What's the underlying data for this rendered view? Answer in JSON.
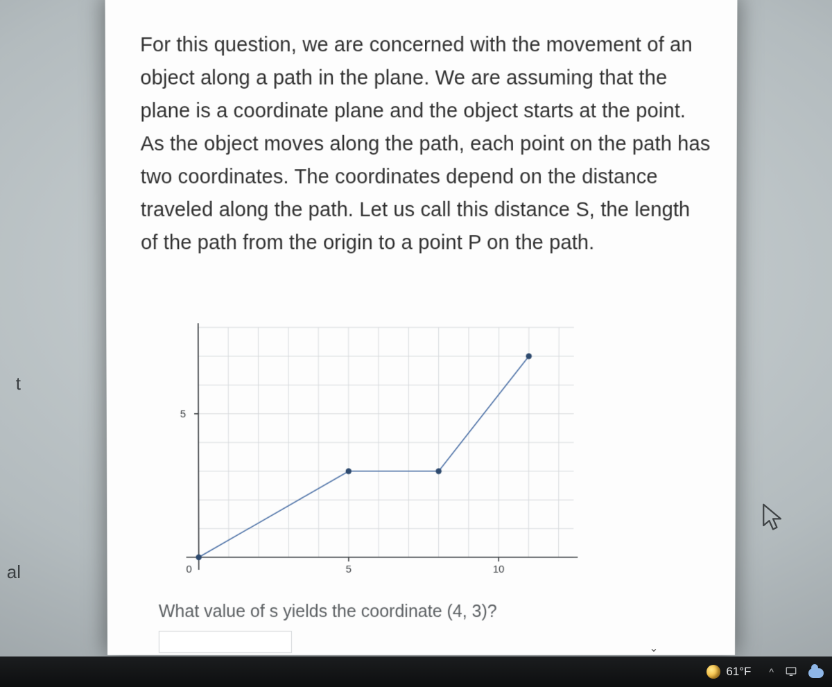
{
  "sidebar": {
    "fragment_top": "t",
    "fragment_bottom": "al"
  },
  "question": {
    "body": "For this question, we are concerned with the movement of an object along a path in the plane.  We are assuming that the plane is a coordinate plane and the object starts at the point.  As the object moves along the path, each point on the path has two coordinates.  The coordinates depend on the distance traveled along the path.  Let us call this distance S, the length of the path from the origin to a point P on the path.",
    "followup": "What value of s yields the coordinate (4, 3)?"
  },
  "chart": {
    "type": "line",
    "x": {
      "min": 0,
      "max": 12.5,
      "ticks": [
        0,
        5,
        10
      ],
      "labels": [
        "0",
        "5",
        "10"
      ],
      "minor_step": 1
    },
    "y": {
      "min": 0,
      "max": 8,
      "ticks": [
        5
      ],
      "labels": [
        "5"
      ],
      "minor_step": 1
    },
    "series": {
      "points": [
        {
          "x": 0,
          "y": 0
        },
        {
          "x": 5,
          "y": 3
        },
        {
          "x": 8,
          "y": 3
        },
        {
          "x": 11,
          "y": 7
        }
      ],
      "line_color": "#4a6fa5",
      "line_width": 1.6,
      "marker_color": "#2e4a6e",
      "marker_radius": 4.2
    },
    "grid_color": "#d7dadd",
    "axis_color": "#3a3e41",
    "axis_width": 1.6,
    "background_color": "#fdfdfd",
    "tick_label_color": "#3a3e41",
    "tick_label_fontsize": 15
  },
  "taskbar": {
    "temperature": "61°F",
    "chevron": "^"
  }
}
